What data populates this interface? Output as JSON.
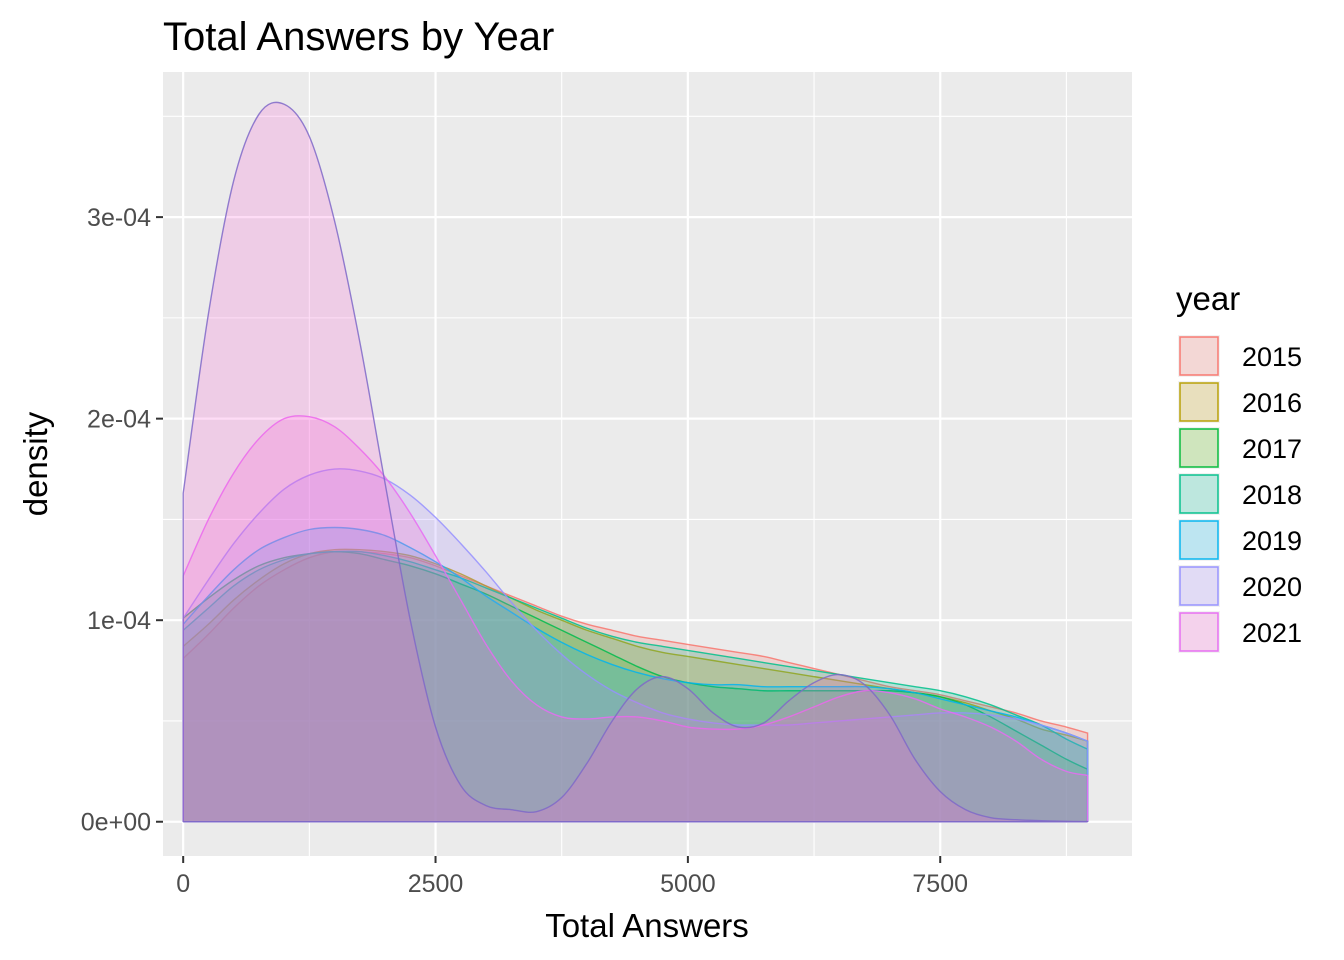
{
  "chart_data": {
    "type": "area",
    "subtype": "density",
    "title": "Total Answers by Year",
    "xlabel": "Total Answers",
    "ylabel": "density",
    "xlim": [
      -200,
      9400
    ],
    "ylim": [
      -1.7e-05,
      0.000372
    ],
    "x_ticks": [
      0,
      2500,
      5000,
      7500
    ],
    "x_tick_labels": [
      "0",
      "2500",
      "5000",
      "7500"
    ],
    "y_ticks": [
      0,
      0.0001,
      0.0002,
      0.0003
    ],
    "y_tick_labels": [
      "0e+00",
      "1e-04",
      "2e-04",
      "3e-04"
    ],
    "grid": true,
    "legend": {
      "title": "year",
      "position": "right"
    },
    "x": [
      0,
      250,
      500,
      750,
      1000,
      1250,
      1500,
      1750,
      2000,
      2250,
      2500,
      2750,
      3000,
      3250,
      3500,
      3750,
      4000,
      4250,
      4500,
      4750,
      5000,
      5250,
      5500,
      5750,
      6000,
      6250,
      6500,
      6750,
      7000,
      7250,
      7500,
      7750,
      8000,
      8250,
      8500,
      8750,
      8960
    ],
    "series": [
      {
        "name": "2015",
        "fill": "#F8766D",
        "stroke": "#F8766D",
        "values": [
          8.1e-05,
          9.3e-05,
          0.000106,
          0.000117,
          0.000125,
          0.000131,
          0.000134,
          0.000134,
          0.000133,
          0.000131,
          0.000127,
          0.000122,
          0.000117,
          0.000112,
          0.000107,
          0.000102,
          9.8e-05,
          9.5e-05,
          9.2e-05,
          9e-05,
          8.8e-05,
          8.6e-05,
          8.4e-05,
          8.2e-05,
          7.9e-05,
          7.6e-05,
          7.3e-05,
          7e-05,
          6.7e-05,
          6.5e-05,
          6.3e-05,
          6e-05,
          5.7e-05,
          5.4e-05,
          5e-05,
          4.7e-05,
          4.4e-05
        ]
      },
      {
        "name": "2016",
        "fill": "#C49A00",
        "stroke": "#B79F00",
        "values": [
          8.7e-05,
          9.8e-05,
          0.00011,
          0.00012,
          0.000128,
          0.000133,
          0.000135,
          0.000135,
          0.000134,
          0.000132,
          0.000128,
          0.000123,
          0.000117,
          0.000111,
          0.000105,
          0.0001,
          9.5e-05,
          9.1e-05,
          8.7e-05,
          8.4e-05,
          8.2e-05,
          8e-05,
          7.8e-05,
          7.6e-05,
          7.4e-05,
          7.2e-05,
          7e-05,
          6.8e-05,
          6.6e-05,
          6.4e-05,
          6.2e-05,
          5.9e-05,
          5.5e-05,
          5.1e-05,
          4.6e-05,
          4.3e-05,
          4e-05
        ]
      },
      {
        "name": "2017",
        "fill": "#53B400",
        "stroke": "#00BA38",
        "values": [
          0.000101,
          0.000111,
          0.00012,
          0.000127,
          0.000131,
          0.000133,
          0.000134,
          0.000133,
          0.00013,
          0.000127,
          0.000123,
          0.000118,
          0.000113,
          0.000107,
          0.000101,
          9.5e-05,
          8.9e-05,
          8.3e-05,
          7.7e-05,
          7.2e-05,
          6.9e-05,
          6.7e-05,
          6.6e-05,
          6.5e-05,
          6.5e-05,
          6.5e-05,
          6.5e-05,
          6.5e-05,
          6.5e-05,
          6.4e-05,
          6.2e-05,
          5.8e-05,
          5.2e-05,
          4.5e-05,
          3.8e-05,
          3.1e-05,
          2.6e-05
        ]
      },
      {
        "name": "2018",
        "fill": "#00C094",
        "stroke": "#00C08B",
        "values": [
          9.5e-05,
          0.000106,
          0.000117,
          0.000125,
          0.00013,
          0.000133,
          0.000134,
          0.000134,
          0.000132,
          0.000129,
          0.000125,
          0.000121,
          0.000116,
          0.000111,
          0.000106,
          0.000101,
          9.6e-05,
          9.2e-05,
          8.9e-05,
          8.7e-05,
          8.5e-05,
          8.3e-05,
          8.1e-05,
          7.9e-05,
          7.7e-05,
          7.5e-05,
          7.3e-05,
          7.1e-05,
          6.9e-05,
          6.7e-05,
          6.5e-05,
          6.2e-05,
          5.8e-05,
          5.3e-05,
          4.8e-05,
          4.1e-05,
          3.6e-05
        ]
      },
      {
        "name": "2019",
        "fill": "#00B6EB",
        "stroke": "#00B4F0",
        "values": [
          9.8e-05,
          0.000112,
          0.000125,
          0.000135,
          0.000141,
          0.000145,
          0.000146,
          0.000145,
          0.000142,
          0.000136,
          0.000129,
          0.000121,
          0.000112,
          0.000104,
          9.6e-05,
          8.9e-05,
          8.3e-05,
          7.8e-05,
          7.4e-05,
          7.1e-05,
          6.9e-05,
          6.8e-05,
          6.8e-05,
          6.7e-05,
          6.7e-05,
          6.7e-05,
          6.7e-05,
          6.7e-05,
          6.6e-05,
          6.4e-05,
          6.1e-05,
          5.8e-05,
          5.5e-05,
          5.2e-05,
          4.8e-05,
          4.4e-05,
          4e-05
        ]
      },
      {
        "name": "2020",
        "fill": "#A58AFF",
        "stroke": "#9590FF",
        "values": [
          0.000101,
          0.00012,
          0.000138,
          0.000153,
          0.000165,
          0.000172,
          0.000175,
          0.000174,
          0.00017,
          0.000162,
          0.000151,
          0.000138,
          0.000124,
          0.000109,
          9.5e-05,
          8.3e-05,
          7.3e-05,
          6.5e-05,
          5.9e-05,
          5.4e-05,
          5.1e-05,
          4.9e-05,
          4.8e-05,
          4.8e-05,
          4.8e-05,
          4.9e-05,
          5e-05,
          5.1e-05,
          5.2e-05,
          5.3e-05,
          5.4e-05,
          5.4e-05,
          5.3e-05,
          5.1e-05,
          4.8e-05,
          4.4e-05,
          4e-05
        ]
      },
      {
        "name": "2021",
        "fill": "#FB61D7",
        "stroke": "#E76BF3",
        "values": [
          0.000122,
          0.00015,
          0.000173,
          0.00019,
          0.0002,
          0.000201,
          0.000196,
          0.000185,
          0.000171,
          0.000153,
          0.000132,
          0.00011,
          8.8e-05,
          7e-05,
          5.8e-05,
          5.2e-05,
          5.1e-05,
          5.2e-05,
          5.2e-05,
          5e-05,
          4.7e-05,
          4.6e-05,
          4.6e-05,
          4.8e-05,
          5.2e-05,
          5.7e-05,
          6.2e-05,
          6.5e-05,
          6.4e-05,
          6.1e-05,
          5.6e-05,
          5.2e-05,
          4.7e-05,
          4e-05,
          3.1e-05,
          2.5e-05,
          2.3e-05
        ]
      },
      {
        "name": "2021",
        "fill": "#FB61D7",
        "stroke": "#7F69C8",
        "legend": false,
        "values": [
          0.000163,
          0.000252,
          0.000318,
          0.000351,
          0.000356,
          0.00034,
          0.000298,
          0.000238,
          0.000168,
          0.0001,
          4.7e-05,
          1.8e-05,
          8e-06,
          6e-06,
          5e-06,
          1.2e-05,
          2.9e-05,
          5e-05,
          6.6e-05,
          7.2e-05,
          6.6e-05,
          5.4e-05,
          4.7e-05,
          4.9e-05,
          6e-05,
          6.9e-05,
          7.3e-05,
          6.8e-05,
          5.3e-05,
          3.1e-05,
          1.5e-05,
          6e-06,
          2e-06,
          1e-06,
          5e-07,
          2e-07,
          1e-07
        ]
      }
    ]
  }
}
